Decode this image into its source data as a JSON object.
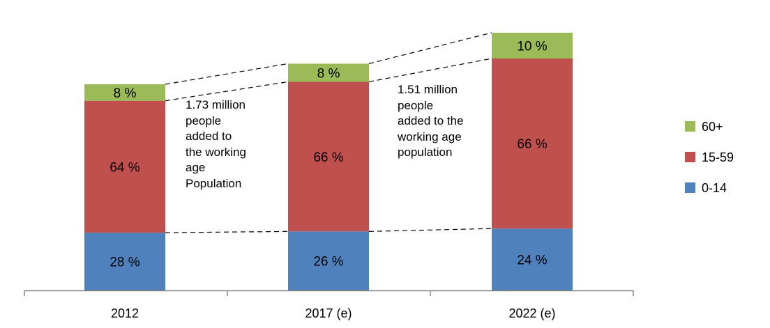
{
  "chart_data": {
    "type": "bar",
    "stacked": true,
    "categories": [
      "2012",
      "2017 (e)",
      "2022 (e)"
    ],
    "series": [
      {
        "name": "0-14",
        "color": "#4f81bd",
        "values": [
          28,
          26,
          24
        ],
        "labels": [
          "28 %",
          "26 %",
          "24 %"
        ]
      },
      {
        "name": "15-59",
        "color": "#c0504d",
        "values": [
          64,
          66,
          66
        ],
        "labels": [
          "64 %",
          "66 %",
          "66 %"
        ]
      },
      {
        "name": "60+",
        "color": "#9bbb59",
        "values": [
          8,
          8,
          10
        ],
        "labels": [
          "8 %",
          "8 %",
          "10 %"
        ]
      }
    ],
    "bar_totals_relative": [
      1.0,
      1.1,
      1.25
    ],
    "legend_position": "right",
    "gridlines": false,
    "annotations": [
      "1.73 million\npeople\nadded to\nthe working\nage\nPopulation",
      "1.51 million\npeople\nadded to the\nworking age\npopulation"
    ]
  }
}
